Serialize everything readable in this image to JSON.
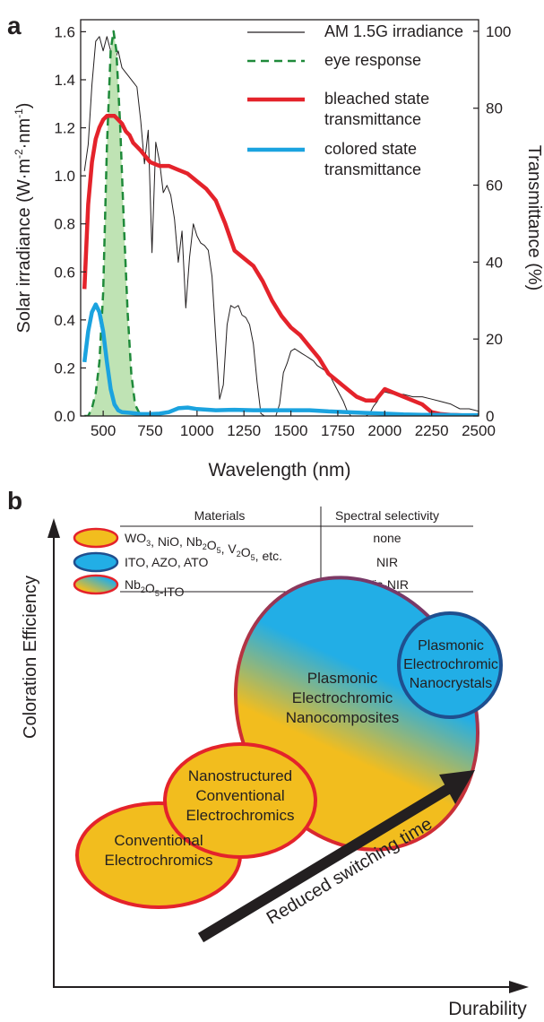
{
  "panel_a_label": "a",
  "panel_b_label": "b",
  "chart_data": [
    {
      "type": "line",
      "xlabel": "Wavelength (nm)",
      "ylabel": "Solar irradiance (W·m⁻²·nm⁻¹)",
      "y2label": "Transmittance (%)",
      "xlim": [
        380,
        2500
      ],
      "ylim": [
        0,
        1.65
      ],
      "y2lim": [
        0,
        103
      ],
      "xticks": [
        "500",
        "750",
        "1000",
        "1250",
        "1500",
        "1750",
        "2000",
        "2250",
        "2500"
      ],
      "yticks": [
        "0.0",
        "0.2",
        "0.4",
        "0.6",
        "0.8",
        "1.0",
        "1.2",
        "1.4",
        "1.6"
      ],
      "y2ticks": [
        "0",
        "20",
        "40",
        "60",
        "80",
        "100"
      ],
      "legend_position": "top-right",
      "series": [
        {
          "name": "AM 1.5G irradiance",
          "axis": "left",
          "color": "#231f20",
          "style": "thin-solid",
          "x": [
            400,
            420,
            440,
            460,
            480,
            500,
            520,
            540,
            560,
            580,
            600,
            620,
            640,
            660,
            680,
            700,
            720,
            740,
            760,
            780,
            800,
            820,
            840,
            860,
            880,
            900,
            920,
            940,
            960,
            980,
            1000,
            1020,
            1040,
            1060,
            1080,
            1100,
            1120,
            1140,
            1160,
            1180,
            1200,
            1220,
            1240,
            1260,
            1280,
            1300,
            1320,
            1340,
            1360,
            1380,
            1400,
            1420,
            1440,
            1460,
            1480,
            1500,
            1520,
            1540,
            1560,
            1580,
            1600,
            1620,
            1640,
            1660,
            1680,
            1700,
            1720,
            1740,
            1760,
            1780,
            1800,
            1820,
            1840,
            1860,
            1880,
            1900,
            1920,
            1940,
            1960,
            1980,
            2000,
            2050,
            2100,
            2150,
            2200,
            2250,
            2300,
            2350,
            2400,
            2450,
            2500
          ],
          "y": [
            1.02,
            1.13,
            1.38,
            1.56,
            1.58,
            1.52,
            1.58,
            1.52,
            1.48,
            1.52,
            1.45,
            1.43,
            1.41,
            1.39,
            1.37,
            1.23,
            1.05,
            1.19,
            0.68,
            1.14,
            1.06,
            0.93,
            0.96,
            0.92,
            0.82,
            0.64,
            0.77,
            0.45,
            0.66,
            0.8,
            0.75,
            0.72,
            0.71,
            0.69,
            0.58,
            0.32,
            0.07,
            0.13,
            0.38,
            0.46,
            0.45,
            0.46,
            0.42,
            0.41,
            0.38,
            0.3,
            0.14,
            0.01,
            0.0,
            0.0,
            0.0,
            0.0,
            0.05,
            0.18,
            0.22,
            0.27,
            0.28,
            0.27,
            0.26,
            0.25,
            0.24,
            0.23,
            0.21,
            0.2,
            0.19,
            0.18,
            0.15,
            0.12,
            0.09,
            0.06,
            0.02,
            0.0,
            0.0,
            0.0,
            0.0,
            0.0,
            0.01,
            0.04,
            0.06,
            0.09,
            0.1,
            0.09,
            0.09,
            0.08,
            0.08,
            0.07,
            0.06,
            0.05,
            0.03,
            0.03,
            0.02
          ]
        },
        {
          "name": "eye response",
          "axis": "right",
          "color": "#1f8a3a",
          "style": "dashed-filled",
          "fill": "#bfe3b4",
          "x": [
            400,
            420,
            440,
            460,
            480,
            500,
            520,
            540,
            555,
            570,
            590,
            610,
            630,
            650,
            670,
            690,
            700
          ],
          "y": [
            0,
            0,
            2,
            6,
            14,
            32,
            70,
            95,
            100,
            95,
            76,
            50,
            27,
            11,
            3,
            1,
            0
          ]
        },
        {
          "name": "bleached state transmittance",
          "axis": "right",
          "color": "#e4232b",
          "style": "thick-solid",
          "x": [
            400,
            420,
            440,
            460,
            480,
            500,
            520,
            540,
            560,
            580,
            600,
            620,
            640,
            660,
            680,
            700,
            750,
            800,
            850,
            900,
            950,
            1000,
            1050,
            1100,
            1150,
            1200,
            1250,
            1300,
            1350,
            1400,
            1450,
            1500,
            1550,
            1600,
            1650,
            1700,
            1750,
            1800,
            1850,
            1900,
            1950,
            2000,
            2050,
            2100,
            2150,
            2200,
            2250,
            2300,
            2350,
            2400,
            2450,
            2500
          ],
          "y": [
            33,
            55,
            66,
            72,
            75,
            77,
            78,
            78,
            78,
            77,
            76,
            74,
            73,
            71,
            70,
            69,
            66,
            65,
            65,
            64,
            63,
            61,
            59,
            56,
            50,
            43,
            41,
            39,
            35,
            30,
            26,
            23,
            21,
            18,
            15,
            11,
            9,
            7,
            5,
            4,
            4,
            7,
            6,
            5,
            4,
            3,
            1,
            0.5,
            0.3,
            0.2,
            0.1,
            0
          ]
        },
        {
          "name": "colored state transmittance",
          "axis": "right",
          "color": "#1ba3df",
          "style": "thick-solid",
          "x": [
            400,
            420,
            440,
            460,
            480,
            500,
            520,
            540,
            560,
            580,
            600,
            650,
            700,
            750,
            800,
            850,
            900,
            950,
            1000,
            1100,
            1200,
            1300,
            1400,
            1500,
            1600,
            1700,
            1800,
            1900,
            2000,
            2100,
            2200,
            2300,
            2400,
            2500
          ],
          "y": [
            14,
            22,
            27,
            29,
            27,
            22,
            14,
            7,
            3,
            1.5,
            1,
            0.8,
            0.5,
            0.5,
            0.6,
            1,
            2,
            2.2,
            1.8,
            1.5,
            1.6,
            1.5,
            1.5,
            1.5,
            1.5,
            1.2,
            1,
            0.8,
            0.6,
            0.4,
            0.3,
            0.3,
            0.2,
            0.2
          ]
        }
      ]
    },
    {
      "type": "diagram",
      "xlabel": "Durability",
      "ylabel": "Coloration Efficiency",
      "table": {
        "headers": [
          "Materials",
          "Spectral selectivity"
        ],
        "rows": [
          {
            "swatch": "conventional",
            "parts": [
              [
                "WO",
                ""
              ],
              [
                "3",
                "sub"
              ],
              [
                ", NiO, Nb",
                ""
              ],
              [
                "2",
                "sub"
              ],
              [
                "O",
                ""
              ],
              [
                "5",
                "sub"
              ],
              [
                ", V",
                ""
              ],
              [
                "2",
                "sub"
              ],
              [
                "O",
                ""
              ],
              [
                "5",
                "sub"
              ],
              [
                ", etc.",
                ""
              ]
            ],
            "selectivity": "none"
          },
          {
            "swatch": "plasmonic",
            "parts": [
              [
                "ITO, AZO, ATO",
                ""
              ]
            ],
            "selectivity": "NIR"
          },
          {
            "swatch": "composite",
            "parts": [
              [
                "Nb",
                ""
              ],
              [
                "2",
                "sub"
              ],
              [
                "O",
                ""
              ],
              [
                "5",
                "sub"
              ],
              [
                "-ITO",
                ""
              ]
            ],
            "selectivity": "Vis-NIR"
          }
        ]
      },
      "ellipses": [
        {
          "id": "composites",
          "lines": [
            "Plasmonic",
            "Electrochromic",
            "Nanocomposites"
          ]
        },
        {
          "id": "nanostructured",
          "lines": [
            "Nanostructured",
            "Conventional",
            "Electrochromics"
          ]
        },
        {
          "id": "conventional",
          "lines": [
            "Conventional",
            "Electrochromics"
          ]
        },
        {
          "id": "nanocrystals",
          "lines": [
            "Plasmonic",
            "Electrochromic",
            "Nanocrystals"
          ]
        }
      ],
      "arrow_label": "Reduced switching time",
      "colors": {
        "yellow": "#f2bd1e",
        "blue": "#22aee6",
        "red_edge": "#e4232b",
        "navy_edge": "#1f4f8f"
      }
    }
  ]
}
